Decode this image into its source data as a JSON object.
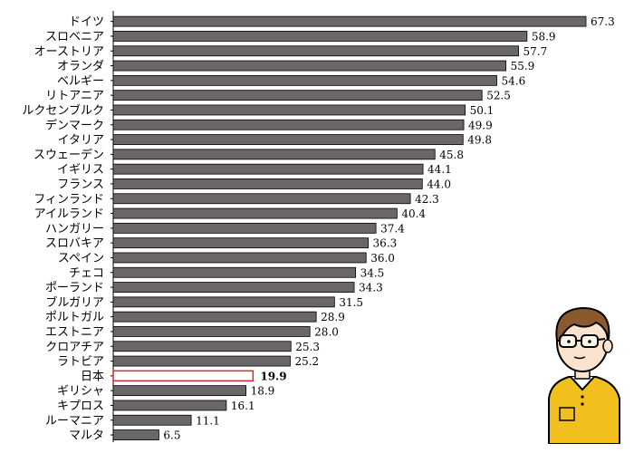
{
  "chart_data": {
    "type": "bar",
    "orientation": "horizontal",
    "categories": [
      "ドイツ",
      "スロベニア",
      "オーストリア",
      "オランダ",
      "ベルギー",
      "リトアニア",
      "ルクセンブルク",
      "デンマーク",
      "イタリア",
      "スウェーデン",
      "イギリス",
      "フランス",
      "フィンランド",
      "アイルランド",
      "ハンガリー",
      "スロバキア",
      "スペイン",
      "チェコ",
      "ポーランド",
      "ブルガリア",
      "ポルトガル",
      "エストニア",
      "クロアチア",
      "ラトビア",
      "日本",
      "ギリシャ",
      "キプロス",
      "ルーマニア",
      "マルタ"
    ],
    "values": [
      67.3,
      58.9,
      57.7,
      55.9,
      54.6,
      52.5,
      50.1,
      49.9,
      49.8,
      45.8,
      44.1,
      44.0,
      42.3,
      40.4,
      37.4,
      36.3,
      36.0,
      34.5,
      34.3,
      31.5,
      28.9,
      28.0,
      25.3,
      25.2,
      19.9,
      18.9,
      16.1,
      11.1,
      6.5
    ],
    "value_labels": [
      "67.3",
      "58.9",
      "57.7",
      "55.9",
      "54.6",
      "52.5",
      "50.1",
      "49.9",
      "49.8",
      "45.8",
      "44.1",
      "44.0",
      "42.3",
      "40.4",
      "37.4",
      "36.3",
      "36.0",
      "34.5",
      "34.3",
      "31.5",
      "28.9",
      "28.0",
      "25.3",
      "25.2",
      "19.9",
      "18.9",
      "16.1",
      "11.1",
      "6.5"
    ],
    "highlight": "日本",
    "xlim": [
      0,
      70
    ],
    "grid": false,
    "legend": "none",
    "title": "",
    "xlabel": "",
    "ylabel": ""
  },
  "colors": {
    "bar_fill": "#6b6667",
    "bar_stroke": "#000000",
    "highlight_fill": "#ffffff",
    "highlight_stroke": "#d9262b",
    "axis": "#000000",
    "mascot_shirt": "#f2c01e",
    "mascot_hair": "#8a5a2e",
    "mascot_skin": "#fbe3cf"
  },
  "decorations": {
    "mascot_icon": "boy-with-glasses-icon"
  }
}
